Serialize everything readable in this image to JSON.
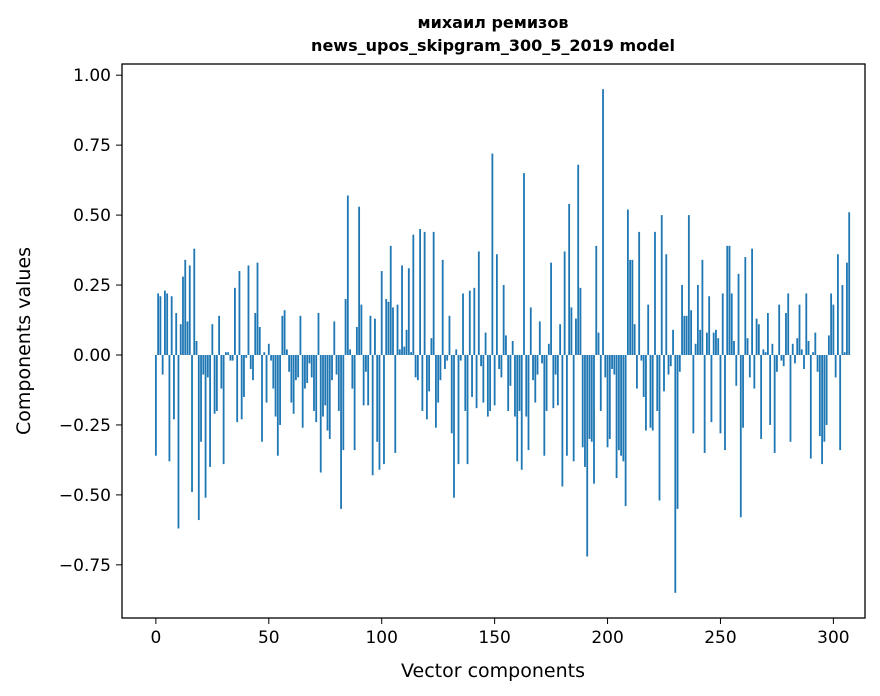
{
  "chart_data": {
    "type": "bar",
    "title_line1": "михаил ремизов",
    "title_line2": "news_upos_skipgram_300_5_2019 model",
    "xlabel": "Vector components",
    "ylabel": "Components values",
    "xlim": [
      -15,
      314
    ],
    "ylim": [
      -0.94,
      1.04
    ],
    "xticks": [
      0,
      50,
      100,
      150,
      200,
      250,
      300
    ],
    "xtick_labels": [
      "0",
      "50",
      "100",
      "150",
      "200",
      "250",
      "300"
    ],
    "yticks": [
      -0.75,
      -0.5,
      -0.25,
      0.0,
      0.25,
      0.5,
      0.75,
      1.0
    ],
    "ytick_labels": [
      "−0.75",
      "−0.50",
      "−0.25",
      "0.00",
      "0.25",
      "0.50",
      "0.75",
      "1.00"
    ],
    "bar_color": "#1f77b4",
    "grid": false,
    "values": [
      -0.36,
      0.22,
      0.21,
      -0.07,
      0.23,
      0.22,
      -0.38,
      0.21,
      -0.23,
      0.15,
      -0.62,
      0.11,
      0.28,
      0.34,
      0.12,
      0.32,
      -0.49,
      0.38,
      0.05,
      -0.59,
      -0.31,
      -0.07,
      -0.51,
      -0.08,
      -0.4,
      0.11,
      -0.21,
      -0.2,
      0.14,
      -0.12,
      -0.39,
      0.01,
      0.01,
      -0.02,
      -0.02,
      0.24,
      -0.24,
      0.3,
      -0.23,
      -0.15,
      -0.01,
      0.32,
      -0.05,
      -0.09,
      0.15,
      0.33,
      0.1,
      -0.31,
      0.01,
      -0.17,
      0.04,
      -0.02,
      -0.12,
      -0.22,
      -0.36,
      -0.25,
      0.14,
      0.16,
      0.02,
      -0.06,
      -0.17,
      -0.21,
      -0.09,
      -0.08,
      0.14,
      -0.26,
      -0.12,
      -0.1,
      -0.03,
      -0.08,
      -0.2,
      -0.24,
      0.15,
      -0.42,
      -0.22,
      -0.18,
      -0.27,
      -0.3,
      -0.09,
      0.12,
      -0.07,
      -0.2,
      -0.55,
      -0.34,
      0.2,
      0.57,
      0.02,
      -0.12,
      -0.34,
      0.1,
      0.53,
      0.18,
      -0.18,
      -0.06,
      -0.18,
      0.14,
      -0.43,
      0.13,
      -0.31,
      -0.41,
      0.3,
      -0.39,
      0.2,
      0.19,
      0.39,
      0.17,
      -0.35,
      0.18,
      0.02,
      0.32,
      0.03,
      0.09,
      0.31,
      0.01,
      0.43,
      -0.08,
      -0.09,
      0.45,
      -0.2,
      0.44,
      -0.23,
      -0.13,
      0.06,
      0.44,
      -0.26,
      -0.17,
      -0.09,
      0.34,
      -0.05,
      -0.02,
      0.14,
      -0.28,
      -0.51,
      0.02,
      -0.39,
      -0.02,
      0.22,
      -0.2,
      -0.39,
      0.23,
      -0.15,
      0.24,
      -0.19,
      0.37,
      -0.04,
      -0.17,
      0.08,
      -0.22,
      -0.2,
      0.72,
      -0.18,
      0.36,
      -0.05,
      -0.08,
      0.25,
      0.07,
      -0.2,
      -0.11,
      0.05,
      -0.22,
      -0.38,
      -0.2,
      -0.41,
      0.65,
      -0.22,
      -0.34,
      0.17,
      -0.09,
      -0.17,
      -0.07,
      0.12,
      -0.03,
      -0.36,
      -0.2,
      0.04,
      0.33,
      -0.19,
      -0.07,
      -0.18,
      0.11,
      -0.47,
      0.37,
      -0.36,
      0.54,
      0.17,
      -0.38,
      0.13,
      0.68,
      0.24,
      -0.33,
      -0.4,
      -0.72,
      -0.3,
      -0.31,
      -0.46,
      0.39,
      0.08,
      -0.2,
      0.95,
      -0.08,
      -0.33,
      -0.3,
      -0.05,
      -0.07,
      -0.44,
      -0.34,
      -0.36,
      -0.38,
      -0.54,
      0.52,
      0.34,
      0.34,
      0.11,
      -0.12,
      0.44,
      -0.02,
      -0.15,
      -0.27,
      0.18,
      -0.26,
      -0.27,
      0.44,
      -0.2,
      -0.52,
      0.5,
      -0.13,
      0.36,
      -0.07,
      -0.04,
      0.09,
      -0.85,
      -0.55,
      -0.06,
      0.25,
      0.14,
      0.14,
      0.5,
      0.16,
      -0.28,
      0.04,
      0.25,
      0.09,
      0.34,
      -0.35,
      0.08,
      0.21,
      -0.24,
      0.08,
      0.09,
      0.06,
      -0.28,
      0.22,
      -0.34,
      0.39,
      0.39,
      0.22,
      0.05,
      -0.11,
      0.29,
      -0.58,
      -0.26,
      0.35,
      0.06,
      -0.08,
      0.38,
      -0.12,
      0.13,
      0.11,
      -0.3,
      0.02,
      0.01,
      0.15,
      -0.25,
      0.04,
      -0.35,
      -0.06,
      0.18,
      -0.02,
      -0.04,
      0.15,
      0.22,
      -0.31,
      0.04,
      -0.03,
      0.06,
      0.18,
      0.02,
      -0.05,
      0.22,
      0.05,
      -0.37,
      0.01,
      0.08,
      -0.06,
      -0.29,
      -0.39,
      -0.31,
      -0.25,
      0.07,
      0.22,
      0.18,
      -0.08,
      0.36,
      -0.34,
      0.25,
      0.01,
      0.33,
      0.51
    ]
  }
}
